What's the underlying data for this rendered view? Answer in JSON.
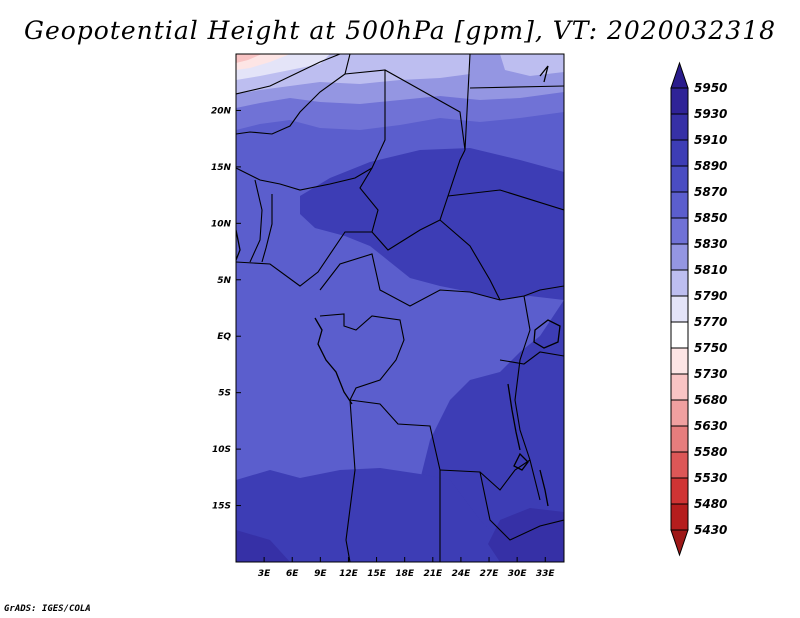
{
  "title": "Geopotential Height at 500hPa [gpm], VT: 2020032318",
  "credit": "GrADS: IGES/COLA",
  "map": {
    "lon_range": [
      0,
      35
    ],
    "lat_range": [
      -20,
      25
    ],
    "x_ticks": [
      "3E",
      "6E",
      "9E",
      "12E",
      "15E",
      "18E",
      "21E",
      "24E",
      "27E",
      "30E",
      "33E"
    ],
    "x_tick_values": [
      3,
      6,
      9,
      12,
      15,
      18,
      21,
      24,
      27,
      30,
      33
    ],
    "y_ticks": [
      "20N",
      "15N",
      "10N",
      "5N",
      "EQ",
      "5S",
      "10S",
      "15S"
    ],
    "y_tick_values": [
      20,
      15,
      10,
      5,
      0,
      -5,
      -10,
      -15
    ]
  },
  "colorbar": {
    "labels": [
      "5950",
      "5930",
      "5910",
      "5890",
      "5870",
      "5850",
      "5830",
      "5810",
      "5790",
      "5770",
      "5750",
      "5730",
      "5680",
      "5630",
      "5580",
      "5530",
      "5480",
      "5430"
    ],
    "colors": [
      "#2a1c8c",
      "#2f2397",
      "#3630a6",
      "#3d3db5",
      "#4a4dc2",
      "#5b5ecd",
      "#7072d6",
      "#9496e2",
      "#bdbef0",
      "#e4e4f8",
      "#ffffff",
      "#fde5e5",
      "#f9c4c4",
      "#f0a0a0",
      "#e67d7d",
      "#dc5757",
      "#cf3434",
      "#b51d1d",
      "#9e1818"
    ]
  },
  "chart_data": {
    "type": "heatmap",
    "title": "Geopotential Height at 500hPa [gpm], VT: 2020032318",
    "variable": "Geopotential Height at 500hPa",
    "units": "gpm",
    "valid_time": "2020032318",
    "x_range": [
      0,
      35
    ],
    "y_range": [
      -20,
      25
    ],
    "levels": [
      5430,
      5480,
      5530,
      5580,
      5630,
      5680,
      5730,
      5750,
      5770,
      5790,
      5810,
      5830,
      5850,
      5870,
      5890,
      5910,
      5930,
      5950
    ],
    "regions": [
      {
        "value": 5790,
        "area": "far north-west corner ~24N 0-3E"
      },
      {
        "value": 5830,
        "area": "northern edge ~22-25N"
      },
      {
        "value": 5850,
        "area": "~20-22N band"
      },
      {
        "value": 5870,
        "area": "western and central band 0-20N, equatorial west"
      },
      {
        "value": 5890,
        "area": "central-east Africa 10-15N, 15-35E; southern Africa"
      },
      {
        "value": 5910,
        "area": "south-east corner ~15-20S 27-33E"
      }
    ]
  }
}
